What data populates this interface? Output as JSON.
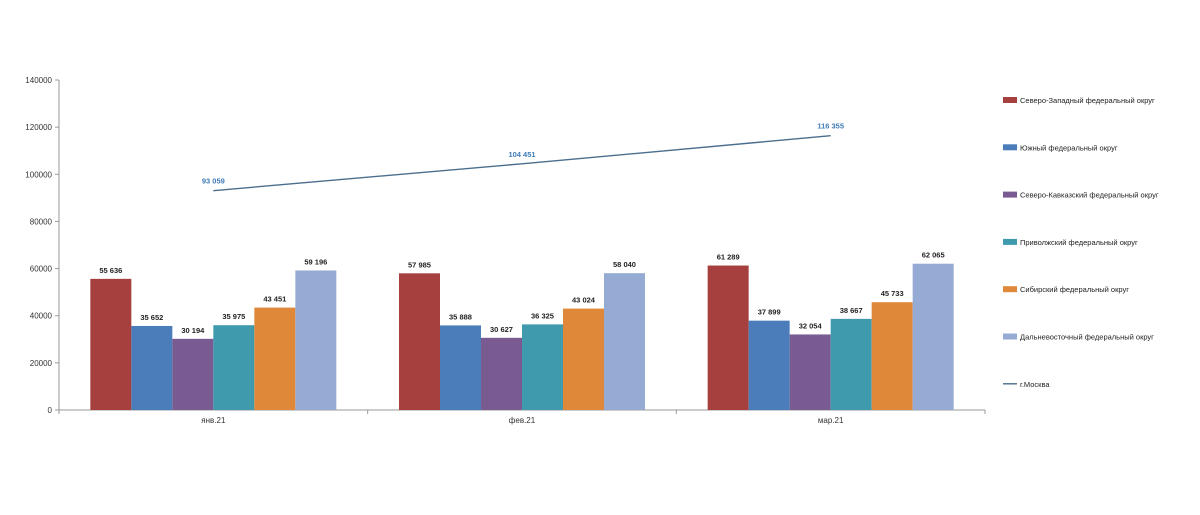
{
  "chart_data": {
    "type": "bar",
    "categories": [
      "янв.21",
      "фев.21",
      "мар.21"
    ],
    "ylim": [
      0,
      140000
    ],
    "yticks": [
      "0",
      "20000",
      "40000",
      "60000",
      "80000",
      "100000",
      "120000",
      "140000"
    ],
    "grid": false,
    "legend_position": "right",
    "series": [
      {
        "name": "Северо-Западный федеральный округ",
        "color": "#A5403F",
        "values": [
          55636,
          57985,
          61289
        ],
        "labels": [
          "55 636",
          "57 985",
          "61 289"
        ]
      },
      {
        "name": "Южный федеральный округ",
        "color": "#4A7DBA",
        "values": [
          35652,
          35888,
          37899
        ],
        "labels": [
          "35 652",
          "35 888",
          "37 899"
        ]
      },
      {
        "name": "Северо-Кавказский федеральный округ",
        "color": "#7A5B91",
        "values": [
          30194,
          30627,
          32054
        ],
        "labels": [
          "30 194",
          "30 627",
          "32 054"
        ]
      },
      {
        "name": "Приволжский федеральный округ",
        "color": "#3F9AAE",
        "values": [
          35975,
          36325,
          38667
        ],
        "labels": [
          "35 975",
          "36 325",
          "38 667"
        ]
      },
      {
        "name": "Сибирский федеральный округ",
        "color": "#E0883A",
        "values": [
          43451,
          43024,
          45733
        ],
        "labels": [
          "43 451",
          "43 024",
          "45 733"
        ]
      }
    ],
    "series_extra": [
      {
        "name": "Дальневосточный федеральный округ",
        "color": "#95ABD4",
        "values": [
          59196,
          58040,
          62065
        ],
        "labels": [
          "59 196",
          "58 040",
          "62 065"
        ]
      }
    ],
    "line": {
      "name": "г.Москва",
      "color": "#4A6E8E",
      "label_color": "#3E7CB8",
      "values": [
        93059,
        104451,
        116355
      ],
      "labels": [
        "93 059",
        "104 451",
        "116 355"
      ]
    }
  }
}
